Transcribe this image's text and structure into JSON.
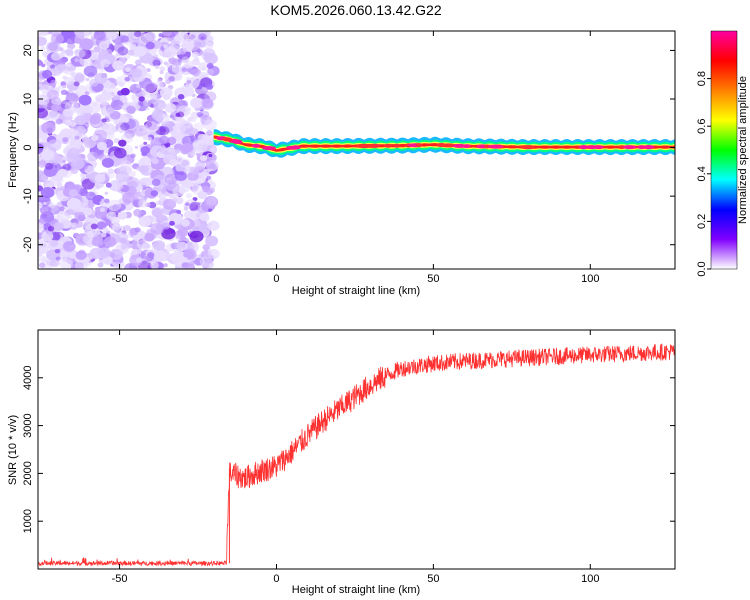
{
  "title": "KOM5.2026.060.13.42.G22",
  "chart_data": [
    {
      "type": "heatmap",
      "xlabel": "Height of straight line (km)",
      "ylabel": "Frequency (Hz)",
      "xlim": [
        -76,
        127
      ],
      "ylim": [
        -25,
        24
      ],
      "x_ticks": [
        -50,
        0,
        50,
        100
      ],
      "y_ticks": [
        -20,
        -10,
        0,
        10,
        20
      ],
      "x_tick_labels": [
        "-50",
        "0",
        "50",
        "100"
      ],
      "y_tick_labels": [
        "-20",
        "-10",
        "0",
        "10",
        "20"
      ],
      "noise_region_x": [
        -76,
        -20
      ],
      "signal_start_x": -20,
      "signal_ridge": [
        {
          "x": -20,
          "y": 2.2
        },
        {
          "x": -14,
          "y": 1.5
        },
        {
          "x": -10,
          "y": 0.6
        },
        {
          "x": -4,
          "y": 0.2
        },
        {
          "x": 0,
          "y": -0.6
        },
        {
          "x": 4,
          "y": -0.2
        },
        {
          "x": 8,
          "y": 0.3
        },
        {
          "x": 20,
          "y": 0.3
        },
        {
          "x": 40,
          "y": 0.4
        },
        {
          "x": 50,
          "y": 0.6
        },
        {
          "x": 60,
          "y": 0.3
        },
        {
          "x": 80,
          "y": 0.1
        },
        {
          "x": 100,
          "y": 0.1
        },
        {
          "x": 127,
          "y": 0.1
        }
      ]
    },
    {
      "type": "colorbar",
      "label": "Normalized spectral amplitude",
      "range": [
        0,
        1
      ],
      "ticks": [
        0.0,
        0.2,
        0.4,
        0.6,
        0.8
      ],
      "tick_labels": [
        "0.0",
        "0.2",
        "0.4",
        "0.6",
        "0.8"
      ],
      "colors": [
        "#ffffff",
        "#8000ff",
        "#0000ff",
        "#00ffff",
        "#00ff00",
        "#ffff00",
        "#ff8000",
        "#ff0000",
        "#ff00a0"
      ]
    },
    {
      "type": "line",
      "xlabel": "Height of straight line (km)",
      "ylabel": "SNR (10 * v/v)",
      "xlim": [
        -76,
        127
      ],
      "ylim": [
        0,
        5000
      ],
      "x_ticks": [
        -50,
        0,
        50,
        100
      ],
      "y_ticks": [
        1000,
        2000,
        3000,
        4000
      ],
      "x_tick_labels": [
        "-50",
        "0",
        "50",
        "100"
      ],
      "y_tick_labels": [
        "1000",
        "2000",
        "3000",
        "4000"
      ],
      "series_color": "#ff3030",
      "trend": [
        {
          "x": -76,
          "y": 120
        },
        {
          "x": -16,
          "y": 120
        },
        {
          "x": -15,
          "y": 2000
        },
        {
          "x": -10,
          "y": 1900
        },
        {
          "x": -5,
          "y": 2050
        },
        {
          "x": 0,
          "y": 2150
        },
        {
          "x": 5,
          "y": 2450
        },
        {
          "x": 10,
          "y": 2800
        },
        {
          "x": 15,
          "y": 3100
        },
        {
          "x": 20,
          "y": 3350
        },
        {
          "x": 25,
          "y": 3600
        },
        {
          "x": 30,
          "y": 3850
        },
        {
          "x": 35,
          "y": 4050
        },
        {
          "x": 40,
          "y": 4200
        },
        {
          "x": 50,
          "y": 4300
        },
        {
          "x": 60,
          "y": 4350
        },
        {
          "x": 80,
          "y": 4420
        },
        {
          "x": 100,
          "y": 4480
        },
        {
          "x": 127,
          "y": 4550
        }
      ]
    }
  ]
}
